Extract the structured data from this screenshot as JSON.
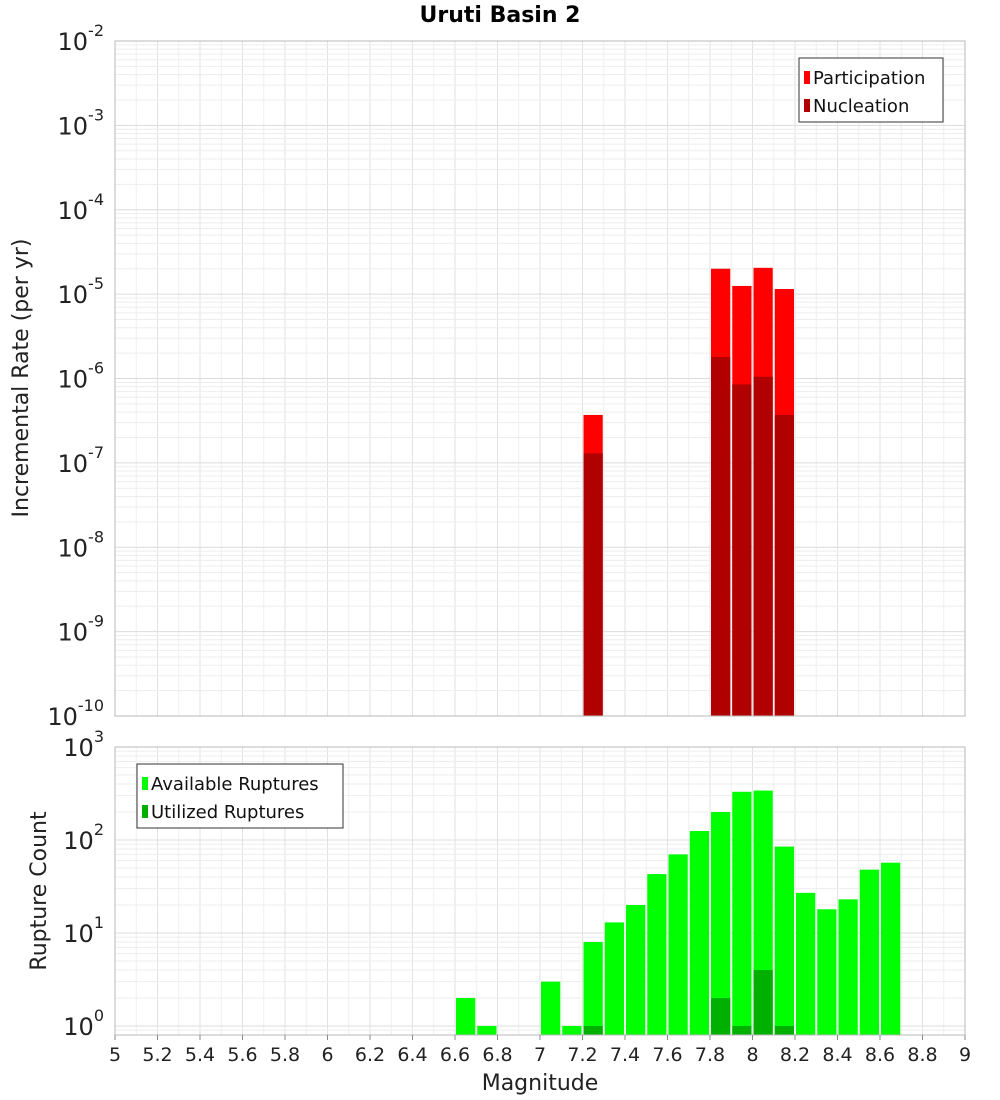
{
  "chart_data": [
    {
      "type": "bar",
      "title": "Uruti Basin 2",
      "ylabel": "Incremental Rate (per yr)",
      "yscale": "log",
      "ylim": [
        1e-10,
        0.01
      ],
      "xlim": [
        5,
        9
      ],
      "bin_width": 0.1,
      "y_ticks": [
        {
          "base": "10",
          "exp": "-10"
        },
        {
          "base": "10",
          "exp": "-9"
        },
        {
          "base": "10",
          "exp": "-8"
        },
        {
          "base": "10",
          "exp": "-7"
        },
        {
          "base": "10",
          "exp": "-6"
        },
        {
          "base": "10",
          "exp": "-5"
        },
        {
          "base": "10",
          "exp": "-4"
        },
        {
          "base": "10",
          "exp": "-3"
        },
        {
          "base": "10",
          "exp": "-2"
        }
      ],
      "legend": {
        "position": "top-right"
      },
      "series": [
        {
          "name": "Participation",
          "color": "#ff0000",
          "x": [
            7.25,
            7.85,
            7.95,
            8.05,
            8.15
          ],
          "values": [
            3.7e-07,
            2e-05,
            1.25e-05,
            2.05e-05,
            1.15e-05
          ]
        },
        {
          "name": "Nucleation",
          "color": "#b00000",
          "x": [
            7.25,
            7.85,
            7.95,
            8.05,
            8.15
          ],
          "values": [
            1.3e-07,
            1.8e-06,
            8.5e-07,
            1.05e-06,
            3.7e-07
          ]
        }
      ]
    },
    {
      "type": "bar",
      "xlabel": "Magnitude",
      "ylabel": "Rupture Count",
      "yscale": "log",
      "ylim": [
        0.8,
        1000
      ],
      "xlim": [
        5,
        9
      ],
      "bin_width": 0.1,
      "y_ticks": [
        {
          "base": "10",
          "exp": "0"
        },
        {
          "base": "10",
          "exp": "1"
        },
        {
          "base": "10",
          "exp": "2"
        },
        {
          "base": "10",
          "exp": "3"
        }
      ],
      "x_ticks": [
        "5",
        "5.2",
        "5.4",
        "5.6",
        "5.8",
        "6",
        "6.2",
        "6.4",
        "6.6",
        "6.8",
        "7",
        "7.2",
        "7.4",
        "7.6",
        "7.8",
        "8",
        "8.2",
        "8.4",
        "8.6",
        "8.8",
        "9"
      ],
      "legend": {
        "position": "top-left"
      },
      "series": [
        {
          "name": "Available Ruptures",
          "color": "#00ff00",
          "x": [
            6.65,
            6.75,
            7.05,
            7.15,
            7.25,
            7.35,
            7.45,
            7.55,
            7.65,
            7.75,
            7.85,
            7.95,
            8.05,
            8.15,
            8.25,
            8.35,
            8.45,
            8.55,
            8.65
          ],
          "values": [
            2,
            1,
            3,
            1,
            8,
            13,
            20,
            43,
            70,
            125,
            200,
            330,
            340,
            85,
            27,
            18,
            23,
            48,
            57
          ]
        },
        {
          "name": "Utilized Ruptures",
          "color": "#00b000",
          "x": [
            7.25,
            7.85,
            7.95,
            8.05,
            8.15
          ],
          "values": [
            1,
            2,
            1,
            4,
            1
          ]
        }
      ]
    }
  ]
}
